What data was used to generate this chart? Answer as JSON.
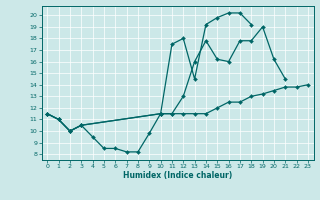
{
  "xlabel": "Humidex (Indice chaleur)",
  "bg_color": "#cce8e8",
  "line_color": "#006666",
  "grid_color": "#b0d4d4",
  "xlim": [
    -0.5,
    23.5
  ],
  "ylim": [
    7.5,
    20.8
  ],
  "yticks": [
    8,
    9,
    10,
    11,
    12,
    13,
    14,
    15,
    16,
    17,
    18,
    19,
    20
  ],
  "xticks": [
    0,
    1,
    2,
    3,
    4,
    5,
    6,
    7,
    8,
    9,
    10,
    11,
    12,
    13,
    14,
    15,
    16,
    17,
    18,
    19,
    20,
    21,
    22,
    23
  ],
  "series": [
    {
      "x": [
        0,
        1,
        2,
        3,
        10,
        11,
        12,
        13,
        14,
        15,
        16,
        17,
        18
      ],
      "y": [
        11.5,
        11.0,
        10.0,
        10.5,
        11.5,
        17.5,
        18.0,
        14.5,
        19.2,
        19.8,
        20.2,
        20.2,
        19.2
      ]
    },
    {
      "x": [
        0,
        1,
        2,
        3,
        10,
        11,
        12,
        13,
        14,
        15,
        16,
        17,
        18,
        19,
        20,
        21
      ],
      "y": [
        11.5,
        11.0,
        10.0,
        10.5,
        11.5,
        11.5,
        13.0,
        16.0,
        17.8,
        16.2,
        16.0,
        17.8,
        17.8,
        19.0,
        16.2,
        14.5
      ]
    },
    {
      "x": [
        0,
        1,
        2,
        3,
        4,
        5,
        6,
        7,
        8,
        9,
        10,
        11,
        12,
        13,
        14,
        15,
        16,
        17,
        18,
        19,
        20,
        21,
        22,
        23
      ],
      "y": [
        11.5,
        11.0,
        10.0,
        10.5,
        9.5,
        8.5,
        8.5,
        8.2,
        8.2,
        9.8,
        11.5,
        11.5,
        11.5,
        11.5,
        11.5,
        12.0,
        12.5,
        12.5,
        13.0,
        13.2,
        13.5,
        13.8,
        13.8,
        14.0
      ]
    }
  ]
}
